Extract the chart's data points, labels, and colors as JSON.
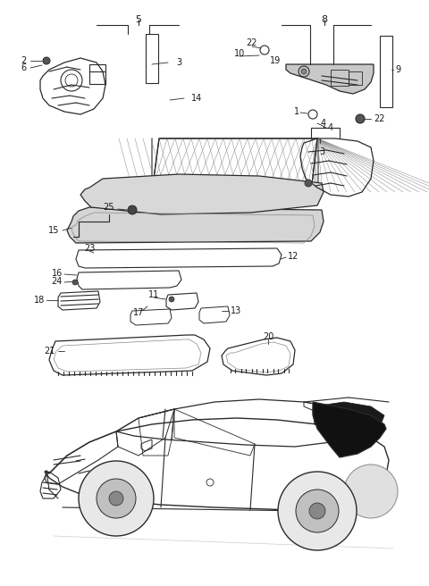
{
  "bg_color": "#ffffff",
  "line_color": "#2a2a2a",
  "fig_width": 4.8,
  "fig_height": 6.56,
  "dpi": 100
}
